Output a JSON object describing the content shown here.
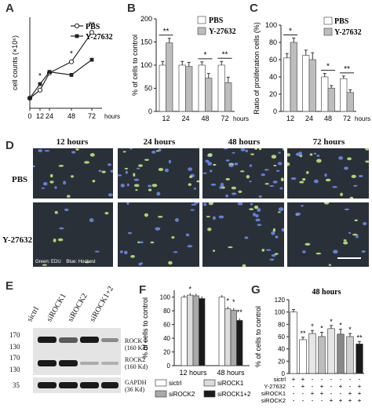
{
  "panels": {
    "A": "A",
    "B": "B",
    "C": "C",
    "D": "D",
    "E": "E",
    "F": "F",
    "G": "G"
  },
  "colors": {
    "pbs_bar": "#ffffff",
    "y27632_bar": "#bdbdbd",
    "line_black": "#222222",
    "sictrl": "#ffffff",
    "sirock1": "#dcdcdc",
    "sirock2": "#a9a9a9",
    "sirock12": "#1a1a1a"
  },
  "chart_data": [
    {
      "id": "A",
      "type": "line",
      "ylabel": "cell counts (×10⁶)",
      "xlabel": "hours",
      "x": [
        0,
        12,
        24,
        48,
        72
      ],
      "xticks": [
        "0",
        "12",
        "24",
        "48",
        "72"
      ],
      "series": [
        {
          "name": "PBS",
          "values": [
            1.0,
            1.8,
            3.5,
            4.6,
            7.5
          ],
          "marker": "circle"
        },
        {
          "name": "Y-27632",
          "values": [
            1.0,
            2.4,
            3.6,
            3.3,
            4.8
          ],
          "marker": "square"
        }
      ],
      "annotations": [
        "*",
        "*",
        "**"
      ],
      "ylim": [
        0,
        9
      ]
    },
    {
      "id": "B",
      "type": "bar",
      "ylabel": "% of cells to control",
      "xlabel": "hours",
      "categories": [
        "12",
        "24",
        "48",
        "72"
      ],
      "series": [
        {
          "name": "PBS",
          "values": [
            100,
            100,
            100,
            100
          ]
        },
        {
          "name": "Y-27632",
          "values": [
            148,
            97,
            72,
            62
          ]
        }
      ],
      "errors": [
        [
          8,
          8,
          7,
          8
        ],
        [
          10,
          9,
          10,
          12
        ]
      ],
      "annotations": [
        "**",
        "*",
        "**"
      ],
      "yticks": [
        "0",
        "50",
        "100",
        "150",
        "200"
      ],
      "ylim": [
        0,
        200
      ]
    },
    {
      "id": "C",
      "type": "bar",
      "ylabel": "Ratio of proliferation cells (%)",
      "xlabel": "hours",
      "categories": [
        "12",
        "24",
        "48",
        "72"
      ],
      "series": [
        {
          "name": "PBS",
          "values": [
            62,
            65,
            40,
            38
          ]
        },
        {
          "name": "Y-27632",
          "values": [
            80,
            60,
            27,
            22
          ]
        }
      ],
      "errors": [
        [
          5,
          6,
          4,
          3
        ],
        [
          5,
          8,
          3,
          3
        ]
      ],
      "annotations": [
        "*",
        "*",
        "**"
      ],
      "yticks": [
        "0",
        "20",
        "40",
        "60",
        "80",
        "100"
      ],
      "ylim": [
        0,
        100
      ]
    },
    {
      "id": "F",
      "type": "bar",
      "ylabel": "% of cells to control",
      "categories": [
        "12 hours",
        "48 hours"
      ],
      "series": [
        {
          "name": "sictrl",
          "values": [
            100,
            100
          ]
        },
        {
          "name": "siROCK1",
          "values": [
            103,
            83
          ]
        },
        {
          "name": "siROCK2",
          "values": [
            102,
            81
          ]
        },
        {
          "name": "siROCK1+2",
          "values": [
            98,
            66
          ]
        }
      ],
      "annotations": [
        "*",
        "*",
        "*",
        "**"
      ],
      "yticks": [
        "0",
        "20",
        "40",
        "60",
        "80",
        "100"
      ],
      "ylim": [
        0,
        110
      ]
    },
    {
      "id": "G",
      "type": "bar",
      "title": "48 hours",
      "ylabel": "% of cells to control",
      "values": [
        100,
        55,
        65,
        60,
        73,
        64,
        60,
        48
      ],
      "errors": [
        4,
        4,
        5,
        7,
        5,
        8,
        5,
        4
      ],
      "annotations": [
        "**",
        "*",
        "*",
        "*",
        "*",
        "*",
        "**"
      ],
      "yticks": [
        "0",
        "20",
        "40",
        "60",
        "80",
        "100",
        "120"
      ],
      "ylim": [
        0,
        120
      ],
      "rows": [
        {
          "label": "sictrl",
          "signs": [
            "+",
            "+",
            "-",
            "-",
            "-",
            "-",
            "-",
            "-"
          ]
        },
        {
          "label": "Y-27632",
          "signs": [
            "-",
            "+",
            "-",
            "+",
            "-",
            "+",
            "-",
            "+"
          ]
        },
        {
          "label": "siROCK1",
          "signs": [
            "-",
            "-",
            "+",
            "+",
            "-",
            "-",
            "+",
            "+"
          ]
        },
        {
          "label": "siROCK2",
          "signs": [
            "-",
            "-",
            "-",
            "-",
            "+",
            "+",
            "+",
            "+"
          ]
        }
      ]
    }
  ],
  "panelD": {
    "columns": [
      "12 hours",
      "24 hours",
      "48 hours",
      "72 hours"
    ],
    "rows": [
      "PBS",
      "Y-27632"
    ],
    "legend": "Green: EDU    Blue: Hochest"
  },
  "panelE": {
    "lanes": [
      "sictrl",
      "siROCK1",
      "siROCK2",
      "siROCK1+2"
    ],
    "markers": [
      "170",
      "130",
      "170",
      "130",
      "35"
    ],
    "bands": [
      {
        "label": "ROCK 1",
        "size": "(160 Kd)"
      },
      {
        "label": "ROCK2",
        "size": "(160 Kd)"
      },
      {
        "label": "GAPDH",
        "size": "(36 Kd)"
      }
    ]
  }
}
